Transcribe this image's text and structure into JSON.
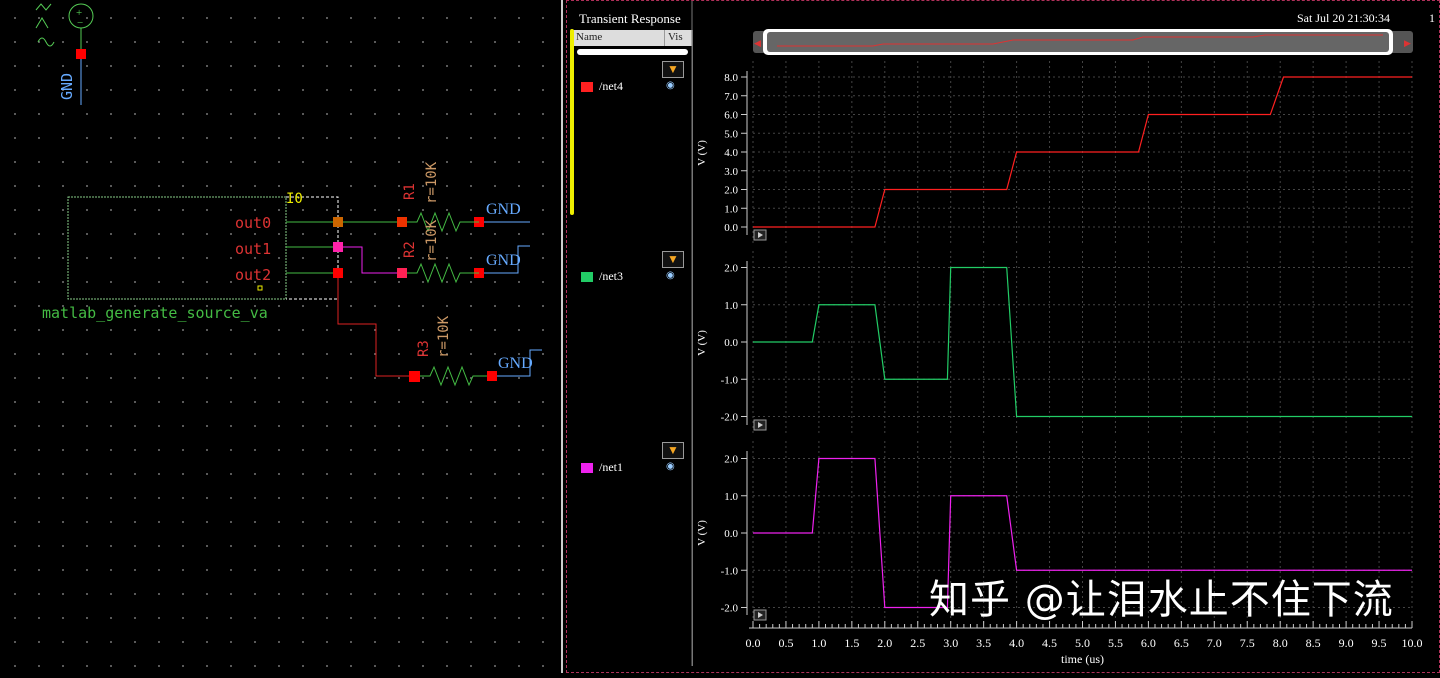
{
  "schematic": {
    "instance_name": "I0",
    "cell_name": "matlab_generate_source_va",
    "pins": [
      "out0",
      "out1",
      "out2"
    ],
    "resistors": [
      {
        "name": "R1",
        "value": "r=10K"
      },
      {
        "name": "R2",
        "value": "r=10K"
      },
      {
        "name": "R3",
        "value": "r=10K"
      }
    ],
    "ground_label": "GND"
  },
  "waveform": {
    "title": "Transient Response",
    "datetime": "Sat Jul 20 21:30:34",
    "datetime_extra": "1",
    "list_header": {
      "name": "Name",
      "vis": "Vis"
    },
    "icons": {
      "filter": "funnel-icon",
      "visibility": "eye-icon",
      "expand": "play-icon"
    }
  },
  "chart_data": [
    {
      "type": "line",
      "ylabel": "V (V)",
      "ylim": [
        -0.6,
        8.6
      ],
      "yticks": [
        0.0,
        1.0,
        2.0,
        3.0,
        4.0,
        5.0,
        6.0,
        7.0,
        8.0
      ],
      "series": [
        {
          "name": "/net4",
          "color": "#ff2020",
          "x": [
            0,
            1.85,
            2.0,
            3.85,
            4.0,
            5.85,
            6.0,
            7.85,
            8.05,
            10
          ],
          "y": [
            0,
            0,
            2,
            2,
            4,
            4,
            6,
            6,
            8,
            8
          ]
        }
      ]
    },
    {
      "type": "line",
      "ylabel": "V (V)",
      "ylim": [
        -2.4,
        2.4
      ],
      "yticks": [
        -2.0,
        -1.0,
        0.0,
        1.0,
        2.0
      ],
      "series": [
        {
          "name": "/net3",
          "color": "#22cc66",
          "x": [
            0,
            0.9,
            1.0,
            1.85,
            2.0,
            2.95,
            3.0,
            3.85,
            4.0,
            10
          ],
          "y": [
            0,
            0,
            1,
            1,
            -1,
            -1,
            2,
            2,
            -2,
            -2
          ]
        }
      ]
    },
    {
      "type": "line",
      "ylabel": "V (V)",
      "ylim": [
        -2.4,
        2.4
      ],
      "yticks": [
        -2.0,
        -1.0,
        0.0,
        1.0,
        2.0
      ],
      "series": [
        {
          "name": "/net1",
          "color": "#ee22ee",
          "x": [
            0,
            0.9,
            1.0,
            1.85,
            2.0,
            2.95,
            3.0,
            3.85,
            4.0,
            10
          ],
          "y": [
            0,
            0,
            2,
            2,
            -2,
            -2,
            1,
            1,
            -1,
            -1
          ]
        }
      ]
    }
  ],
  "xaxis": {
    "label": "time (us)",
    "xlim": [
      0,
      10
    ],
    "ticks": [
      "0.0",
      "0.5",
      "1.0",
      "1.5",
      "2.0",
      "2.5",
      "3.0",
      "3.5",
      "4.0",
      "4.5",
      "5.0",
      "5.5",
      "6.0",
      "6.5",
      "7.0",
      "7.5",
      "8.0",
      "8.5",
      "9.0",
      "9.5",
      "10.0"
    ]
  },
  "watermark": "知乎 @让泪水止不住下流"
}
